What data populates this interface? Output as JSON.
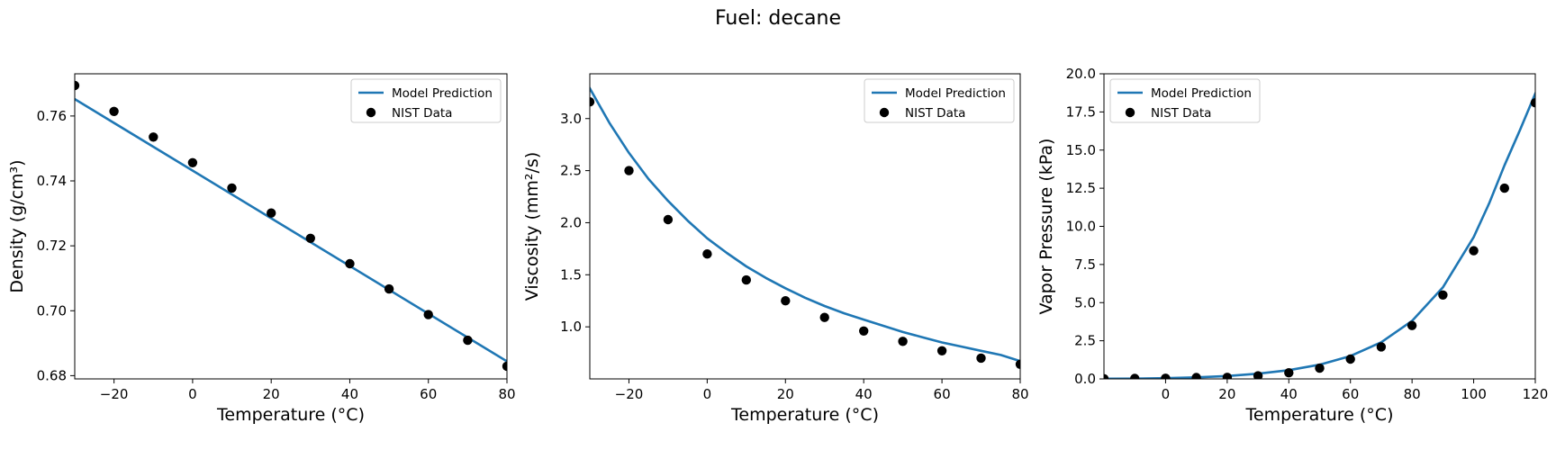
{
  "figure": {
    "title": "Fuel: decane"
  },
  "chart_data": [
    {
      "type": "line",
      "xlabel": "Temperature (°C)",
      "ylabel": "Density (g/cm³)",
      "xlim": [
        -30,
        80
      ],
      "ylim": [
        0.679,
        0.773
      ],
      "xticks": [
        -20,
        0,
        20,
        40,
        60,
        80
      ],
      "xtick_labels": [
        "−20",
        "0",
        "20",
        "40",
        "60",
        "80"
      ],
      "yticks": [
        0.68,
        0.7,
        0.72,
        0.74,
        0.76
      ],
      "ytick_labels": [
        "0.68",
        "0.70",
        "0.72",
        "0.74",
        "0.76"
      ],
      "legend": {
        "position": "top-right",
        "entries": [
          "Model Prediction",
          "NIST Data"
        ]
      },
      "grid": false,
      "series": [
        {
          "name": "Model Prediction",
          "kind": "line",
          "color": "#1f77b4",
          "x": [
            -30,
            80
          ],
          "y": [
            0.7652,
            0.6844
          ]
        },
        {
          "name": "NIST Data",
          "kind": "scatter",
          "color": "#000000",
          "x": [
            -30,
            -20,
            -10,
            0,
            10,
            20,
            30,
            40,
            50,
            60,
            70,
            80
          ],
          "y": [
            0.7694,
            0.7614,
            0.7535,
            0.7456,
            0.7378,
            0.7301,
            0.7223,
            0.7145,
            0.7067,
            0.6988,
            0.6909,
            0.6829
          ]
        }
      ]
    },
    {
      "type": "line",
      "xlabel": "Temperature (°C)",
      "ylabel": "Viscosity (mm²/s)",
      "xlim": [
        -30,
        80
      ],
      "ylim": [
        0.5,
        3.43
      ],
      "xticks": [
        -20,
        0,
        20,
        40,
        60,
        80
      ],
      "xtick_labels": [
        "−20",
        "0",
        "20",
        "40",
        "60",
        "80"
      ],
      "yticks": [
        1.0,
        1.5,
        2.0,
        2.5,
        3.0
      ],
      "ytick_labels": [
        "1.0",
        "1.5",
        "2.0",
        "2.5",
        "3.0"
      ],
      "legend": {
        "position": "top-right",
        "entries": [
          "Model Prediction",
          "NIST Data"
        ]
      },
      "grid": false,
      "series": [
        {
          "name": "Model Prediction",
          "kind": "line",
          "color": "#1f77b4",
          "x": [
            -30,
            -25,
            -20,
            -15,
            -10,
            -5,
            0,
            5,
            10,
            15,
            20,
            25,
            30,
            35,
            40,
            45,
            50,
            55,
            60,
            65,
            70,
            75,
            80
          ],
          "y": [
            3.29,
            2.96,
            2.67,
            2.42,
            2.21,
            2.02,
            1.85,
            1.71,
            1.58,
            1.47,
            1.37,
            1.28,
            1.2,
            1.13,
            1.07,
            1.01,
            0.95,
            0.9,
            0.85,
            0.81,
            0.77,
            0.73,
            0.67
          ]
        },
        {
          "name": "NIST Data",
          "kind": "scatter",
          "color": "#000000",
          "x": [
            -30,
            -20,
            -10,
            0,
            10,
            20,
            30,
            40,
            50,
            60,
            70,
            80
          ],
          "y": [
            3.16,
            2.5,
            2.03,
            1.7,
            1.45,
            1.25,
            1.09,
            0.96,
            0.86,
            0.77,
            0.7,
            0.64
          ]
        }
      ]
    },
    {
      "type": "line",
      "xlabel": "Temperature (°C)",
      "ylabel": "Vapor Pressure (kPa)",
      "xlim": [
        -20,
        120
      ],
      "ylim": [
        0,
        20
      ],
      "xticks": [
        0,
        20,
        40,
        60,
        80,
        100,
        120
      ],
      "xtick_labels": [
        "0",
        "20",
        "40",
        "60",
        "80",
        "100",
        "120"
      ],
      "yticks": [
        0,
        2.5,
        5,
        7.5,
        10,
        12.5,
        15,
        17.5,
        20
      ],
      "ytick_labels": [
        "0.0",
        "2.5",
        "5.0",
        "7.5",
        "10.0",
        "12.5",
        "15.0",
        "17.5",
        "20.0"
      ],
      "legend": {
        "position": "top-left",
        "entries": [
          "Model Prediction",
          "NIST Data"
        ]
      },
      "grid": false,
      "series": [
        {
          "name": "Model Prediction",
          "kind": "line",
          "color": "#1f77b4",
          "x": [
            -20,
            -10,
            0,
            10,
            20,
            30,
            40,
            50,
            60,
            70,
            80,
            90,
            100,
            105,
            110,
            115,
            120
          ],
          "y": [
            0.01,
            0.02,
            0.05,
            0.1,
            0.19,
            0.34,
            0.57,
            0.93,
            1.5,
            2.4,
            3.8,
            6.0,
            9.3,
            11.5,
            14.0,
            16.3,
            18.7
          ]
        },
        {
          "name": "NIST Data",
          "kind": "scatter",
          "color": "#000000",
          "x": [
            -20,
            -10,
            0,
            10,
            20,
            30,
            40,
            50,
            60,
            70,
            80,
            90,
            100,
            110,
            120
          ],
          "y": [
            0.01,
            0.03,
            0.04,
            0.09,
            0.1,
            0.2,
            0.4,
            0.7,
            1.3,
            2.1,
            3.5,
            5.5,
            8.4,
            12.5,
            18.1
          ]
        }
      ]
    }
  ]
}
